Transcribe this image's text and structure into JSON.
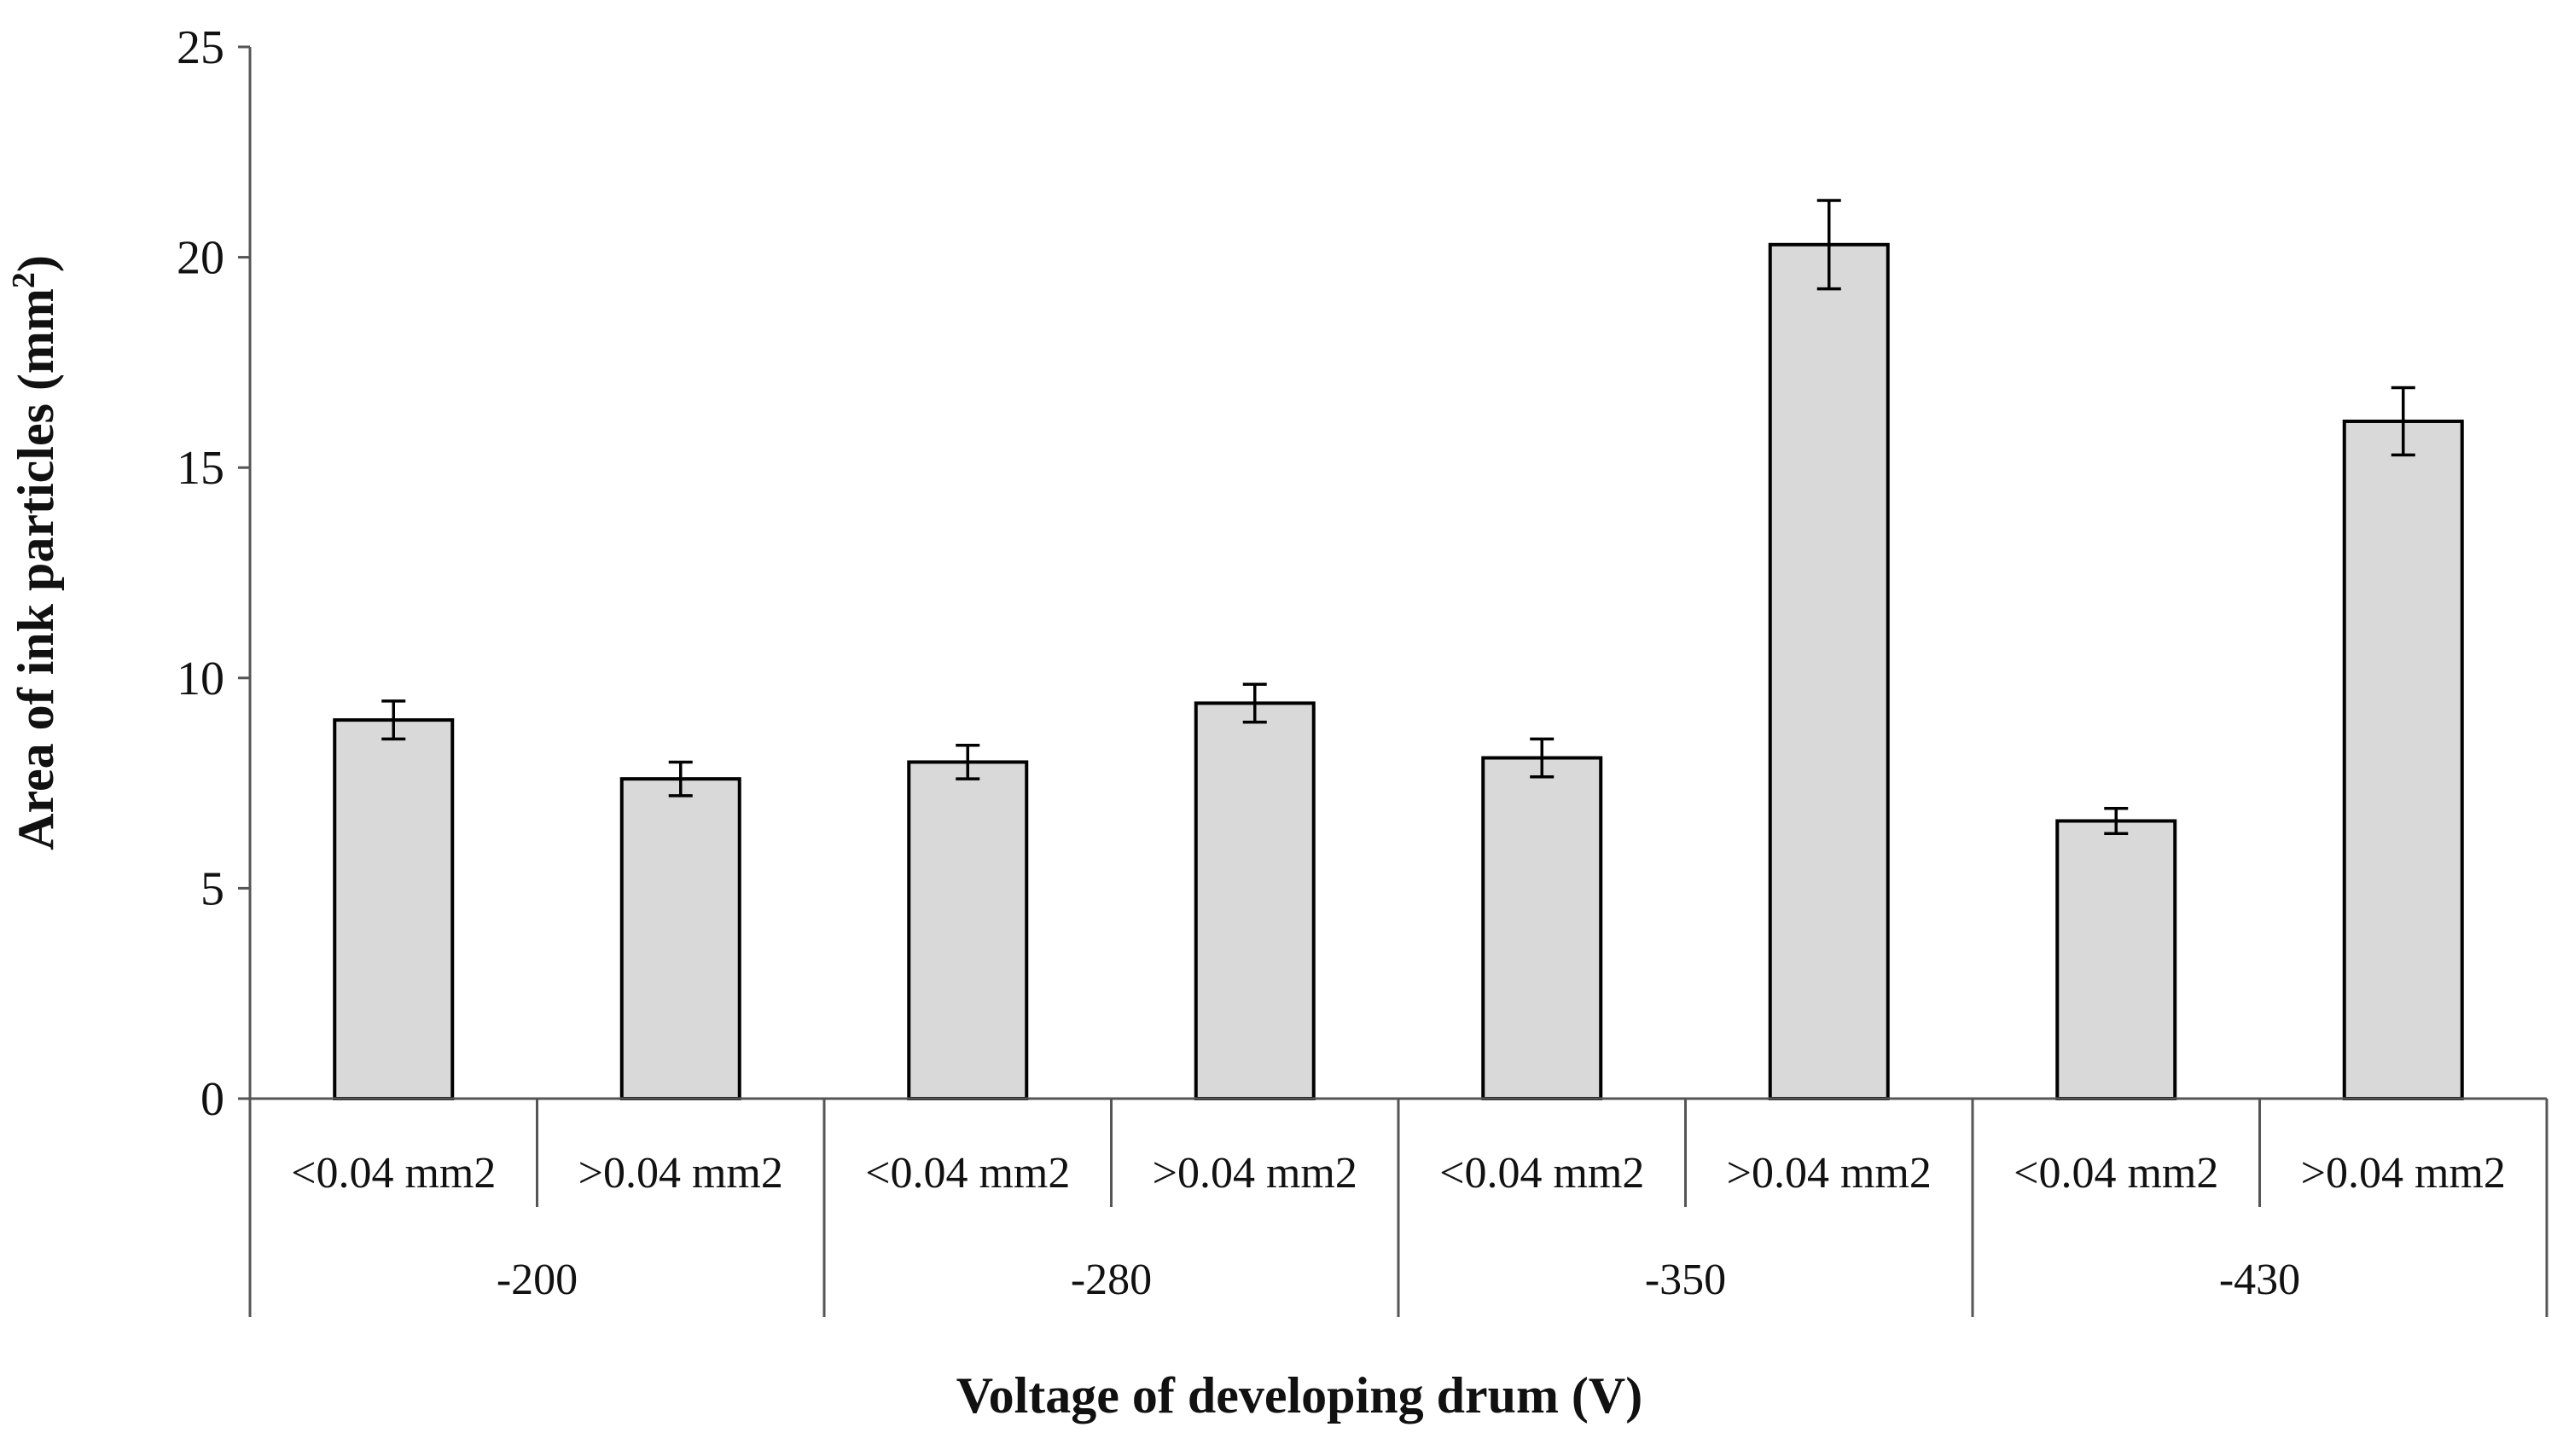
{
  "chart_data": {
    "type": "bar",
    "title": "",
    "xlabel": "Voltage of developing drum (V)",
    "ylabel": "Area of ink particles (mm",
    "ylabel_sup": "2",
    "ylabel_close": ")",
    "ylim": [
      0,
      25
    ],
    "yticks": [
      "0",
      "5",
      "10",
      "15",
      "20",
      "25"
    ],
    "grid": false,
    "legend": "none",
    "bar_fill": "#d9d9d9",
    "bar_stroke": "#000000",
    "groups": [
      {
        "label": "-200",
        "categories": [
          "<0.04 mm2",
          ">0.04 mm2"
        ]
      },
      {
        "label": "-280",
        "categories": [
          "<0.04 mm2",
          ">0.04 mm2"
        ]
      },
      {
        "label": "-350",
        "categories": [
          "<0.04 mm2",
          ">0.04 mm2"
        ]
      },
      {
        "label": "-430",
        "categories": [
          "<0.04 mm2",
          ">0.04 mm2"
        ]
      }
    ],
    "values": [
      9.0,
      7.6,
      8.0,
      9.4,
      8.1,
      20.3,
      6.6,
      16.1
    ],
    "errors": [
      0.45,
      0.4,
      0.4,
      0.45,
      0.45,
      1.05,
      0.3,
      0.8
    ]
  }
}
